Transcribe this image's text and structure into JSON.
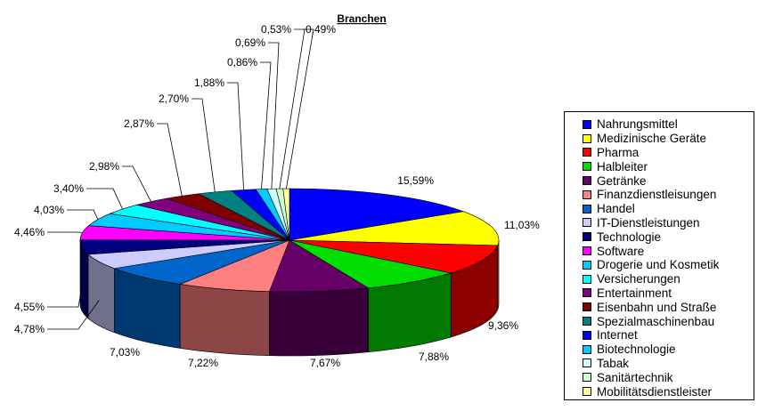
{
  "chart_data": {
    "type": "pie",
    "title": "Branchen",
    "categories": [
      "Nahrungsmittel",
      "Medizinische Geräte",
      "Pharma",
      "Halbleiter",
      "Getränke",
      "Finanzdienstleisungen",
      "Handel",
      "IT-Dienstleistungen",
      "Technologie",
      "Software",
      "Drogerie und Kosmetik",
      "Versicherungen",
      "Entertainment",
      "Eisenbahn und Straße",
      "Spezialmaschinenbau",
      "Internet",
      "Biotechnologie",
      "Tabak",
      "Sanitärtechnik",
      "Mobilitätsdienstleister"
    ],
    "values": [
      15.59,
      11.03,
      9.36,
      7.88,
      7.67,
      7.22,
      7.03,
      4.78,
      4.55,
      4.46,
      4.03,
      3.4,
      2.98,
      2.87,
      2.7,
      1.88,
      0.86,
      0.69,
      0.53,
      0.49
    ],
    "value_labels": [
      "15,59%",
      "11,03%",
      "9,36%",
      "7,88%",
      "7,67%",
      "7,22%",
      "7,03%",
      "4,78%",
      "4,55%",
      "4,46%",
      "4,03%",
      "3,40%",
      "2,98%",
      "2,87%",
      "2,70%",
      "1,88%",
      "0,86%",
      "0,69%",
      "0,53%",
      "0,49%"
    ],
    "colors": [
      "#0000FF",
      "#FFFF00",
      "#FF0000",
      "#00DD00",
      "#660066",
      "#FF8080",
      "#0066CC",
      "#CCCCFF",
      "#000080",
      "#FF00FF",
      "#00CCFF",
      "#00FFFF",
      "#800080",
      "#800000",
      "#008080",
      "#0000FF",
      "#00CCFF",
      "#CCFFFF",
      "#CCFFCC",
      "#FFFF99"
    ],
    "legend_position": "right",
    "style": "3d-exploded"
  }
}
